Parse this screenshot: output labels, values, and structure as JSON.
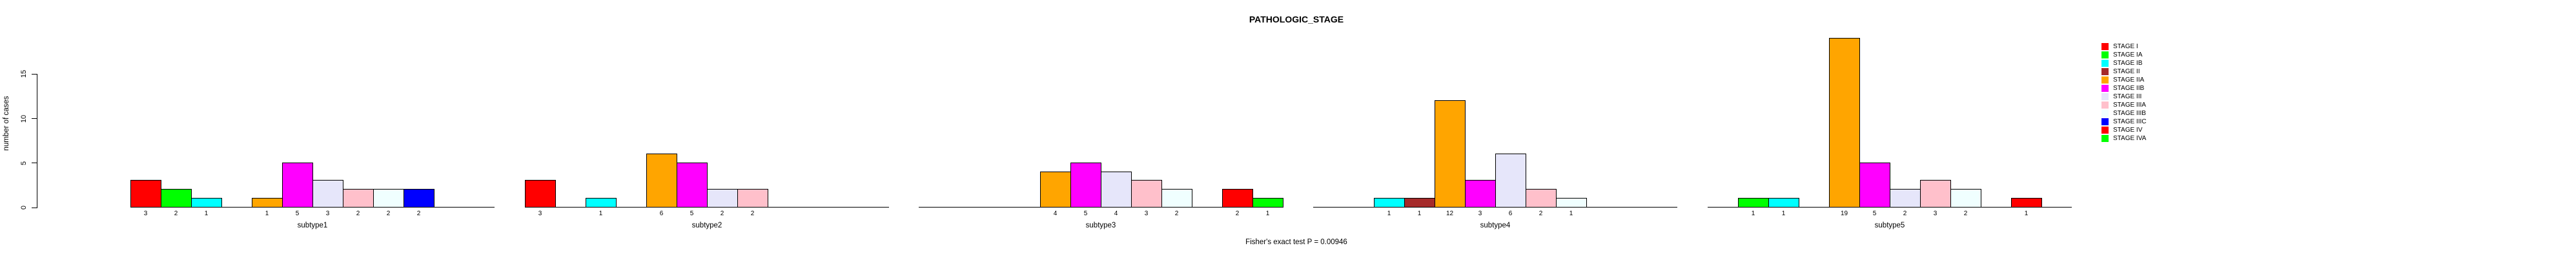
{
  "chart_data": {
    "type": "bar",
    "title": "PATHOLOGIC_STAGE",
    "ylabel": "number of cases",
    "xlabel": "",
    "ylim": [
      0,
      15
    ],
    "yticks": [
      0,
      5,
      10,
      15
    ],
    "grid": false,
    "legend_position": "right",
    "annotation": "Fisher's exact test P = 0.00946",
    "stages": [
      {
        "name": "STAGE I",
        "color": "#FF0000"
      },
      {
        "name": "STAGE IA",
        "color": "#00FF00"
      },
      {
        "name": "STAGE IB",
        "color": "#00FFFF"
      },
      {
        "name": "STAGE II",
        "color": "#A52A2A"
      },
      {
        "name": "STAGE IIA",
        "color": "#FFA500"
      },
      {
        "name": "STAGE IIB",
        "color": "#FF00FF"
      },
      {
        "name": "STAGE III",
        "color": "#E6E6FA"
      },
      {
        "name": "STAGE IIIA",
        "color": "#FFC0CB"
      },
      {
        "name": "STAGE IIIB",
        "color": "#F0FFFF"
      },
      {
        "name": "STAGE IIIC",
        "color": "#0000FF"
      },
      {
        "name": "STAGE IV",
        "color": "#FF0000"
      },
      {
        "name": "STAGE IVA",
        "color": "#00FF00"
      }
    ],
    "categories": [
      "subtype1",
      "subtype2",
      "subtype3",
      "subtype4",
      "subtype5"
    ],
    "series": [
      {
        "name": "subtype1",
        "values": [
          3,
          2,
          1,
          0,
          1,
          5,
          3,
          2,
          2,
          2,
          0,
          0
        ]
      },
      {
        "name": "subtype2",
        "values": [
          3,
          0,
          1,
          0,
          6,
          5,
          2,
          2,
          0,
          0,
          0,
          0
        ]
      },
      {
        "name": "subtype3",
        "values": [
          0,
          0,
          0,
          0,
          4,
          5,
          4,
          3,
          2,
          0,
          2,
          1
        ]
      },
      {
        "name": "subtype4",
        "values": [
          0,
          0,
          1,
          1,
          12,
          3,
          6,
          2,
          1,
          0,
          0,
          0
        ]
      },
      {
        "name": "subtype5",
        "values": [
          0,
          1,
          1,
          0,
          19,
          5,
          2,
          3,
          2,
          0,
          1,
          0
        ]
      }
    ]
  }
}
